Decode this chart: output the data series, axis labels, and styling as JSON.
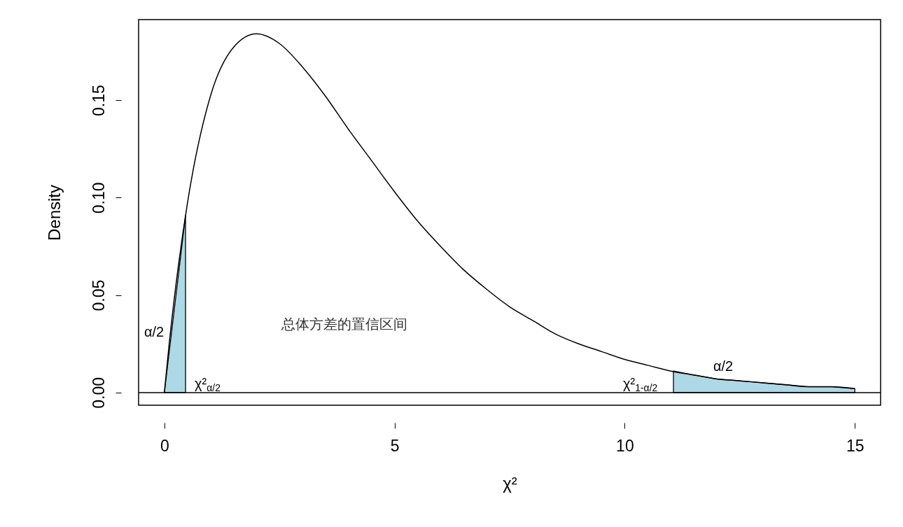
{
  "chart_data": {
    "type": "line",
    "xlabel": "χ²",
    "ylabel": "Density",
    "xlim": [
      -0.56,
      15.56
    ],
    "ylim": [
      -0.0065,
      0.1913
    ],
    "xticks": [
      0,
      5,
      10,
      15
    ],
    "yticks": [
      {
        "value": 0,
        "label": "0.00"
      },
      {
        "value": 0.05,
        "label": "0.05"
      },
      {
        "value": 0.1,
        "label": "0.10"
      },
      {
        "value": 0.15,
        "label": "0.15"
      }
    ],
    "grid": false,
    "legend": false,
    "line_style": "solid",
    "marker": "none",
    "series": [
      {
        "type": "area",
        "color": "#add8e6",
        "x": [
          0,
          0.46
        ],
        "values": [
          0,
          0.091
        ]
      },
      {
        "type": "area",
        "color": "#add8e6",
        "x": [
          11.06,
          11.5,
          12,
          12.5,
          13,
          13.5,
          14,
          14.5,
          15
        ],
        "values": [
          0.011,
          0.009,
          0.007,
          0.006,
          0.005,
          0.004,
          0.003,
          0.003,
          0.002
        ]
      },
      {
        "color": "#000000",
        "x": [
          0,
          0.1,
          0.25,
          0.5,
          1,
          1.5,
          2,
          2.5,
          3,
          3.5,
          4,
          4.5,
          5,
          5.5,
          6,
          6.5,
          7,
          7.5,
          8,
          8.5,
          9,
          9.5,
          10,
          10.5,
          11,
          11.5,
          12,
          12.5,
          13,
          13.5,
          14,
          14.5,
          15
        ],
        "values": [
          0,
          0.024,
          0.055,
          0.097,
          0.152,
          0.177,
          0.184,
          0.179,
          0.167,
          0.152,
          0.135,
          0.119,
          0.103,
          0.088,
          0.075,
          0.063,
          0.053,
          0.044,
          0.037,
          0.03,
          0.025,
          0.021,
          0.017,
          0.014,
          0.011,
          0.009,
          0.007,
          0.006,
          0.005,
          0.004,
          0.003,
          0.003,
          0.002
        ]
      }
    ],
    "ref_lines": [
      {
        "axis": "y",
        "value": 0,
        "color": "#000000"
      }
    ],
    "annotations": [
      "α/2",
      "χ²$_{α/2}$",
      "总体方差的置信区间",
      "χ²$_{1-α/2}$",
      "α/2"
    ]
  }
}
